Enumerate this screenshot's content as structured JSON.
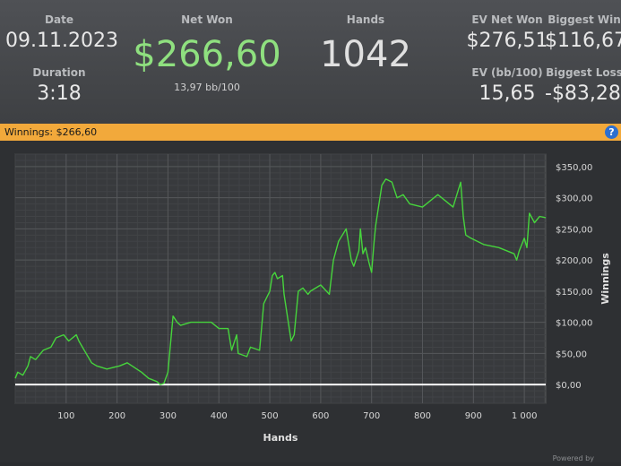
{
  "stats": {
    "date_label": "Date",
    "date_value": "09.11.2023",
    "duration_label": "Duration",
    "duration_value": "3:18",
    "net_won_label": "Net Won",
    "net_won_value": "$266,60",
    "bb_per_100": "13,97 bb/100",
    "hands_label": "Hands",
    "hands_value": "1042",
    "ev_net_won_label": "EV Net Won",
    "ev_net_won_value": "$276,51",
    "biggest_win_label": "Biggest Win",
    "biggest_win_value": "$116,67",
    "ev_bb_label": "EV (bb/100)",
    "ev_bb_value": "15,65",
    "biggest_loss_label": "Biggest Loss",
    "biggest_loss_value": "-$83,28"
  },
  "banner": {
    "label": "Winnings: $266,60"
  },
  "footer": {
    "powered_by": "Powered by"
  },
  "colors": {
    "net_won": "#8fe07f",
    "line": "#46d43c",
    "banner": "#f2a93b",
    "zero_line": "#ffffff"
  },
  "chart_data": {
    "type": "line",
    "title": "",
    "xlabel": "Hands",
    "ylabel": "Winnings",
    "xlim": [
      0,
      1042
    ],
    "ylim": [
      -30,
      370
    ],
    "x_ticks": [
      100,
      200,
      300,
      400,
      500,
      600,
      700,
      800,
      900,
      1000
    ],
    "x_tick_labels": [
      "100",
      "200",
      "300",
      "400",
      "500",
      "600",
      "700",
      "800",
      "900",
      "1 000"
    ],
    "y_ticks": [
      0,
      50,
      100,
      150,
      200,
      250,
      300,
      350
    ],
    "y_tick_labels": [
      "$0,00",
      "$50,00",
      "$100,00",
      "$150,00",
      "$200,00",
      "$250,00",
      "$300,00",
      "$350,00"
    ],
    "grid": true,
    "series": [
      {
        "x": [
          0,
          5,
          15,
          25,
          30,
          40,
          55,
          70,
          80,
          95,
          105,
          120,
          125,
          150,
          160,
          180,
          205,
          220,
          248,
          262,
          278,
          285,
          292,
          300,
          310,
          318,
          325,
          345,
          385,
          400,
          418,
          425,
          435,
          438,
          455,
          462,
          480,
          488,
          500,
          505,
          510,
          515,
          525,
          528,
          542,
          548,
          556,
          565,
          575,
          580,
          600,
          617,
          625,
          635,
          650,
          660,
          665,
          675,
          678,
          683,
          688,
          695,
          700,
          705,
          708,
          720,
          728,
          740,
          750,
          762,
          775,
          800,
          830,
          860,
          875,
          880,
          885,
          895,
          920,
          950,
          980,
          985,
          990,
          1000,
          1005,
          1010,
          1020,
          1030,
          1042
        ],
        "y": [
          10,
          20,
          15,
          30,
          45,
          40,
          55,
          60,
          75,
          80,
          70,
          80,
          70,
          35,
          30,
          25,
          30,
          35,
          20,
          10,
          5,
          0,
          2,
          20,
          110,
          100,
          95,
          100,
          100,
          90,
          90,
          55,
          80,
          50,
          45,
          60,
          55,
          130,
          150,
          175,
          180,
          170,
          175,
          145,
          70,
          80,
          150,
          155,
          145,
          150,
          160,
          145,
          200,
          230,
          250,
          200,
          190,
          215,
          250,
          210,
          220,
          195,
          180,
          230,
          255,
          320,
          330,
          325,
          300,
          305,
          290,
          285,
          305,
          285,
          325,
          270,
          240,
          235,
          225,
          220,
          210,
          200,
          215,
          235,
          220,
          275,
          260,
          270,
          268
        ]
      }
    ]
  }
}
